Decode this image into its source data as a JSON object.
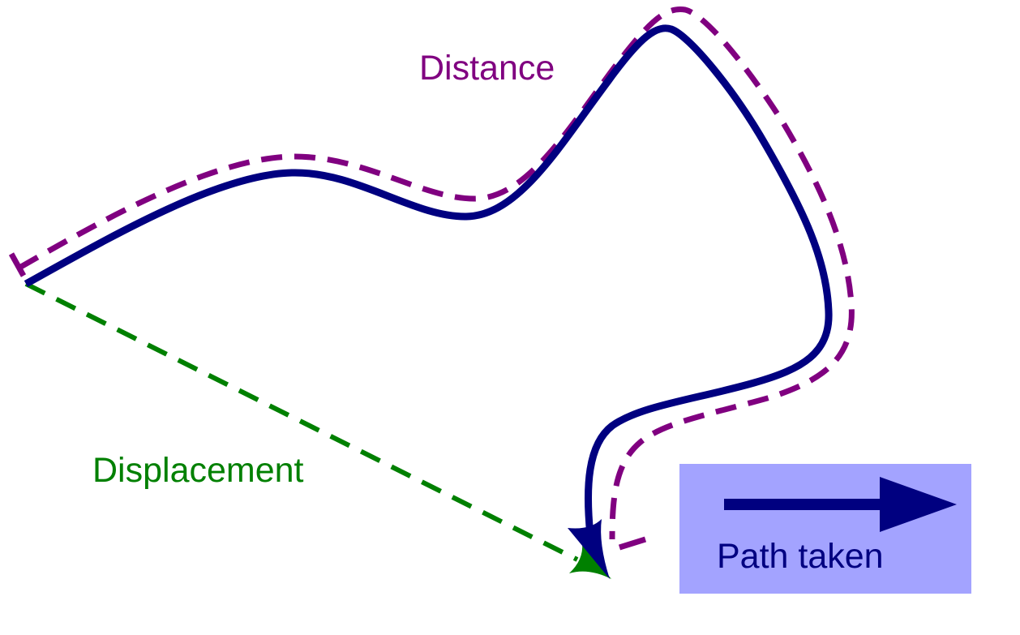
{
  "labels": {
    "distance": "Distance",
    "displacement": "Displacement",
    "legend": "Path taken"
  },
  "colors": {
    "path": "#000080",
    "distance": "#800080",
    "displacement": "#008000",
    "legend_box": "#a3a3ff",
    "background": "#ffffff"
  },
  "icons": {
    "path_arrowhead": "arrowhead-icon",
    "displacement_arrowhead": "arrowhead-icon",
    "legend_arrow": "arrow-right-icon"
  }
}
